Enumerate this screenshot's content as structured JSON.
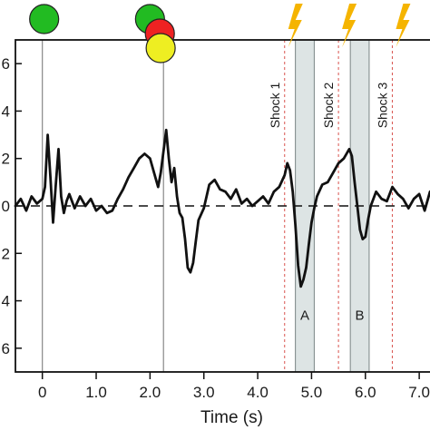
{
  "chart_data": {
    "type": "line",
    "title": "",
    "xlabel": "Time (s)",
    "ylabel": "",
    "xlim": [
      -0.5,
      7.2
    ],
    "ylim": [
      -7,
      7
    ],
    "xticks": [
      0,
      1.0,
      2.0,
      3.0,
      4.0,
      5.0,
      6.0,
      7.0
    ],
    "xtick_labels": [
      "0",
      "1.0",
      "2.0",
      "3.0",
      "4.0",
      "5.0",
      "6.0",
      "7.0"
    ],
    "yticks": [
      -6,
      -4,
      -2,
      0,
      2,
      4,
      6
    ],
    "ytick_labels": [
      "6",
      "4",
      "2",
      "0",
      "2",
      "4",
      "6"
    ],
    "grid": false,
    "baseline_y": 0,
    "event_lines_x": [
      0,
      2.25
    ],
    "event_markers": [
      {
        "x": 0,
        "color": "#22bb22"
      },
      {
        "x": 2.05,
        "color": "#22bb22"
      },
      {
        "x": 2.25,
        "color": "#ee2222"
      },
      {
        "x": 2.4,
        "color": "#eeee22"
      }
    ],
    "shocks": [
      {
        "label": "Shock 1",
        "x": 4.5
      },
      {
        "label": "Shock 2",
        "x": 5.5
      },
      {
        "label": "Shock 3",
        "x": 6.5
      }
    ],
    "shock_color": "#f5b400",
    "shaded_regions": [
      {
        "label": "A",
        "x0": 4.7,
        "x1": 5.05
      },
      {
        "label": "B",
        "x0": 5.72,
        "x1": 6.07
      }
    ],
    "series": [
      {
        "color": "#111111",
        "x": [
          -0.5,
          -0.4,
          -0.3,
          -0.2,
          -0.1,
          0.0,
          0.05,
          0.1,
          0.15,
          0.2,
          0.25,
          0.3,
          0.35,
          0.4,
          0.45,
          0.5,
          0.6,
          0.7,
          0.8,
          0.9,
          1.0,
          1.1,
          1.2,
          1.3,
          1.4,
          1.5,
          1.6,
          1.7,
          1.8,
          1.9,
          2.0,
          2.1,
          2.15,
          2.2,
          2.25,
          2.3,
          2.35,
          2.4,
          2.45,
          2.5,
          2.55,
          2.6,
          2.65,
          2.7,
          2.75,
          2.8,
          2.85,
          2.9,
          3.0,
          3.1,
          3.2,
          3.3,
          3.4,
          3.5,
          3.6,
          3.7,
          3.8,
          3.9,
          4.0,
          4.1,
          4.2,
          4.3,
          4.4,
          4.5,
          4.55,
          4.6,
          4.65,
          4.7,
          4.75,
          4.8,
          4.85,
          4.9,
          4.95,
          5.0,
          5.05,
          5.1,
          5.2,
          5.3,
          5.4,
          5.5,
          5.6,
          5.7,
          5.75,
          5.8,
          5.85,
          5.9,
          5.95,
          6.0,
          6.05,
          6.1,
          6.2,
          6.3,
          6.4,
          6.5,
          6.6,
          6.7,
          6.8,
          6.9,
          7.0,
          7.1,
          7.2
        ],
        "y": [
          0.0,
          0.3,
          -0.2,
          0.4,
          0.1,
          0.3,
          0.8,
          3.0,
          1.2,
          -0.7,
          0.9,
          2.4,
          0.4,
          -0.3,
          0.2,
          0.5,
          -0.1,
          0.4,
          0.0,
          0.3,
          -0.2,
          0.0,
          -0.3,
          -0.2,
          0.3,
          0.7,
          1.2,
          1.6,
          2.0,
          2.2,
          2.0,
          1.2,
          0.8,
          1.4,
          2.3,
          3.2,
          2.0,
          1.0,
          1.6,
          0.4,
          -0.3,
          -0.5,
          -1.4,
          -2.6,
          -2.8,
          -2.4,
          -1.5,
          -0.6,
          -0.1,
          0.9,
          1.1,
          0.7,
          0.6,
          0.3,
          0.7,
          0.1,
          0.3,
          0.0,
          0.2,
          0.4,
          0.1,
          0.6,
          0.8,
          1.3,
          1.8,
          1.5,
          0.6,
          -0.8,
          -2.5,
          -3.4,
          -3.1,
          -2.6,
          -1.6,
          -0.7,
          -0.1,
          0.4,
          0.9,
          1.0,
          1.4,
          1.8,
          2.0,
          2.4,
          2.1,
          1.0,
          0.0,
          -1.0,
          -1.4,
          -1.3,
          -0.6,
          0.0,
          0.6,
          0.3,
          0.2,
          0.8,
          0.5,
          0.3,
          -0.1,
          0.3,
          0.5,
          -0.2,
          0.6
        ]
      }
    ],
    "annotations": [
      "Shock 1",
      "Shock 2",
      "Shock 3",
      "A",
      "B"
    ]
  }
}
